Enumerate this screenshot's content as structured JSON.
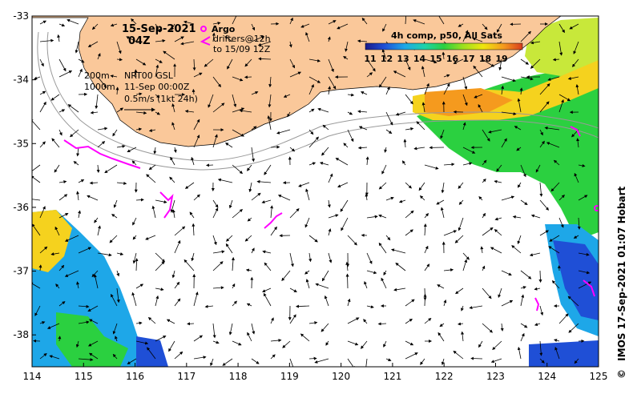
{
  "header": {
    "date": "15-Sep-2021",
    "time": "04Z"
  },
  "legend": {
    "argo_label": "Argo",
    "drifters_label": "drifters@12h",
    "drifters_until": "to 15/09 12Z",
    "colorbar_title": "4h comp, p50, All Sats",
    "colorbar_ticks": [
      "11",
      "12",
      "13",
      "14",
      "15",
      "16",
      "17",
      "18",
      "19"
    ],
    "colorbar_colors": [
      "#1b1b8a",
      "#1f4fd6",
      "#1ea7e8",
      "#1ed3a8",
      "#2bd040",
      "#9ae01e",
      "#f0e60e",
      "#f59a1e",
      "#d83c1e",
      "#8a1a1a"
    ]
  },
  "contours": {
    "shallow_label": "200m",
    "deep_label": "1000m"
  },
  "altimetry": {
    "product": "NRT00 GSL",
    "date": "11-Sep 00:00Z",
    "scale_label": "0.5m/s (1kt 24h)"
  },
  "axes": {
    "x_ticks": [
      "114",
      "115",
      "116",
      "117",
      "118",
      "119",
      "120",
      "121",
      "122",
      "123",
      "124",
      "125"
    ],
    "y_ticks": [
      "-33",
      "-34",
      "-35",
      "-36",
      "-37",
      "-38"
    ],
    "lon_range": [
      114,
      125
    ],
    "lat_range": [
      -38.5,
      -33
    ]
  },
  "credit": {
    "text": "IMOS 17-Sep-2021 01:07 Hobart",
    "copyright_symbol": "©"
  },
  "colors": {
    "land": "#fac89a",
    "argo": "#ff00ff",
    "drifter": "#ff00ff"
  }
}
